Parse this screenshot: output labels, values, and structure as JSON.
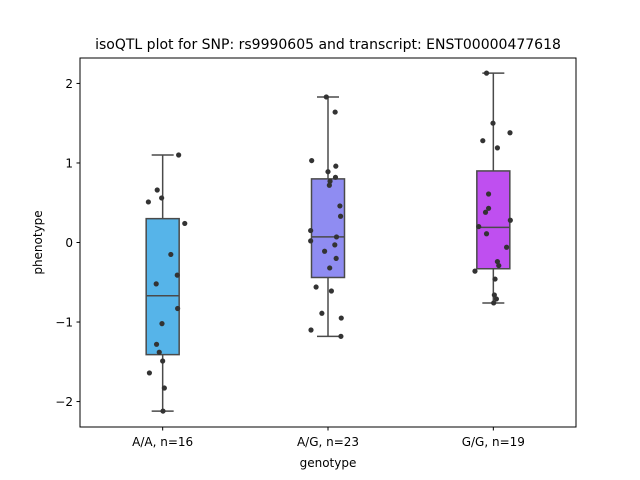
{
  "chart_data": {
    "type": "box",
    "title": "isoQTL plot for SNP: rs9990605 and transcript: ENST00000477618",
    "xlabel": "genotype",
    "ylabel": "phenotype",
    "ylim": [
      -2.32,
      2.32
    ],
    "yticks": [
      -2,
      -1,
      0,
      1,
      2
    ],
    "ytick_labels": [
      "−2",
      "−1",
      "0",
      "1",
      "2"
    ],
    "grid": false,
    "groups": [
      {
        "label": "A/A, n=16",
        "color": "#56b4e9",
        "box": {
          "whisker_low": -2.12,
          "q1": -1.41,
          "median": -0.67,
          "q3": 0.3,
          "whisker_high": 1.1
        },
        "points": [
          {
            "x": 0.47,
            "y": 1.1
          },
          {
            "x": 0.65,
            "y": 0.24
          },
          {
            "x": -0.16,
            "y": 0.66
          },
          {
            "x": -0.03,
            "y": 0.56
          },
          {
            "x": -0.42,
            "y": 0.51
          },
          {
            "x": 0.24,
            "y": -0.15
          },
          {
            "x": 0.43,
            "y": -0.41
          },
          {
            "x": -0.19,
            "y": -0.52
          },
          {
            "x": 0.44,
            "y": -0.83
          },
          {
            "x": -0.02,
            "y": -1.02
          },
          {
            "x": -0.18,
            "y": -1.28
          },
          {
            "x": -0.1,
            "y": -1.38
          },
          {
            "x": 0.0,
            "y": -1.49
          },
          {
            "x": -0.39,
            "y": -1.64
          },
          {
            "x": 0.05,
            "y": -1.83
          },
          {
            "x": 0.01,
            "y": -2.12
          }
        ]
      },
      {
        "label": "A/G, n=23",
        "color": "#8f8cf2",
        "box": {
          "whisker_low": -1.18,
          "q1": -0.44,
          "median": 0.07,
          "q3": 0.8,
          "whisker_high": 1.83
        },
        "points": [
          {
            "x": -0.05,
            "y": 1.83
          },
          {
            "x": 0.21,
            "y": 1.64
          },
          {
            "x": -0.48,
            "y": 1.03
          },
          {
            "x": 0.23,
            "y": 0.96
          },
          {
            "x": 0.0,
            "y": 0.89
          },
          {
            "x": 0.22,
            "y": 0.82
          },
          {
            "x": 0.06,
            "y": 0.77
          },
          {
            "x": 0.04,
            "y": 0.72
          },
          {
            "x": 0.35,
            "y": 0.46
          },
          {
            "x": 0.37,
            "y": 0.33
          },
          {
            "x": -0.51,
            "y": 0.15
          },
          {
            "x": 0.25,
            "y": 0.07
          },
          {
            "x": -0.51,
            "y": 0.02
          },
          {
            "x": 0.2,
            "y": -0.03
          },
          {
            "x": -0.1,
            "y": -0.11
          },
          {
            "x": 0.24,
            "y": -0.2
          },
          {
            "x": 0.05,
            "y": -0.32
          },
          {
            "x": -0.35,
            "y": -0.56
          },
          {
            "x": 0.1,
            "y": -0.61
          },
          {
            "x": -0.18,
            "y": -0.89
          },
          {
            "x": 0.39,
            "y": -0.95
          },
          {
            "x": -0.5,
            "y": -1.1
          },
          {
            "x": 0.38,
            "y": -1.18
          }
        ]
      },
      {
        "label": "G/G, n=19",
        "color": "#bf4ff0",
        "box": {
          "whisker_low": -0.76,
          "q1": -0.33,
          "median": 0.19,
          "q3": 0.9,
          "whisker_high": 2.13
        },
        "points": [
          {
            "x": -0.2,
            "y": 2.13
          },
          {
            "x": -0.01,
            "y": 1.5
          },
          {
            "x": 0.49,
            "y": 1.38
          },
          {
            "x": -0.31,
            "y": 1.28
          },
          {
            "x": 0.12,
            "y": 1.19
          },
          {
            "x": -0.14,
            "y": 0.61
          },
          {
            "x": -0.14,
            "y": 0.43
          },
          {
            "x": -0.23,
            "y": 0.38
          },
          {
            "x": 0.5,
            "y": 0.28
          },
          {
            "x": -0.43,
            "y": 0.2
          },
          {
            "x": -0.2,
            "y": 0.11
          },
          {
            "x": 0.39,
            "y": -0.06
          },
          {
            "x": -0.54,
            "y": -0.36
          },
          {
            "x": 0.05,
            "y": -0.46
          },
          {
            "x": 0.12,
            "y": -0.24
          },
          {
            "x": 0.16,
            "y": -0.29
          },
          {
            "x": 0.03,
            "y": -0.66
          },
          {
            "x": 0.09,
            "y": -0.71
          },
          {
            "x": 0.01,
            "y": -0.76
          }
        ]
      }
    ]
  }
}
